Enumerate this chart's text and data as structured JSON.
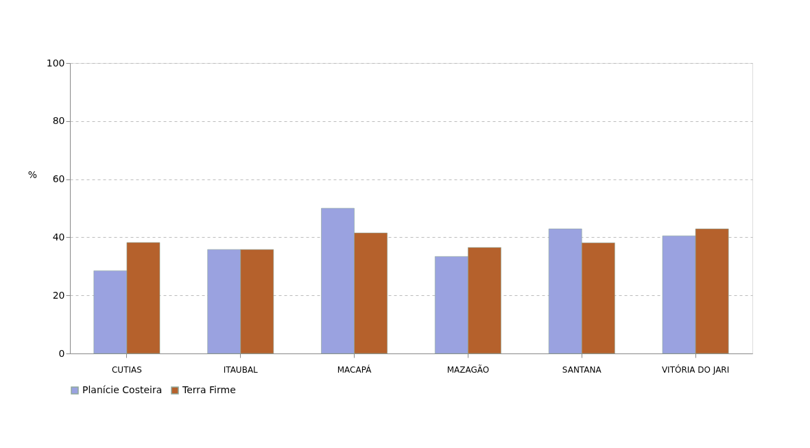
{
  "chart_data": {
    "type": "bar",
    "ylabel": "%",
    "categories": [
      "CUTIAS",
      "ITAUBAL",
      "MACAPÁ",
      "MAZAGÃO",
      "SANTANA",
      "VITÓRIA DO JARI"
    ],
    "series": [
      {
        "name": "Planície Costeira",
        "color": "#9aa2e0",
        "values": [
          28.5,
          35.8,
          50.0,
          33.4,
          42.9,
          40.5
        ]
      },
      {
        "name": "Terra Firme",
        "color": "#b5612c",
        "values": [
          38.2,
          35.8,
          41.5,
          36.5,
          38.1,
          42.9
        ]
      }
    ],
    "ylim": [
      0,
      100
    ],
    "yticks": [
      0,
      20,
      40,
      60,
      80,
      100
    ],
    "grid": "y",
    "line_style": "dashed",
    "legend": "bottom"
  }
}
